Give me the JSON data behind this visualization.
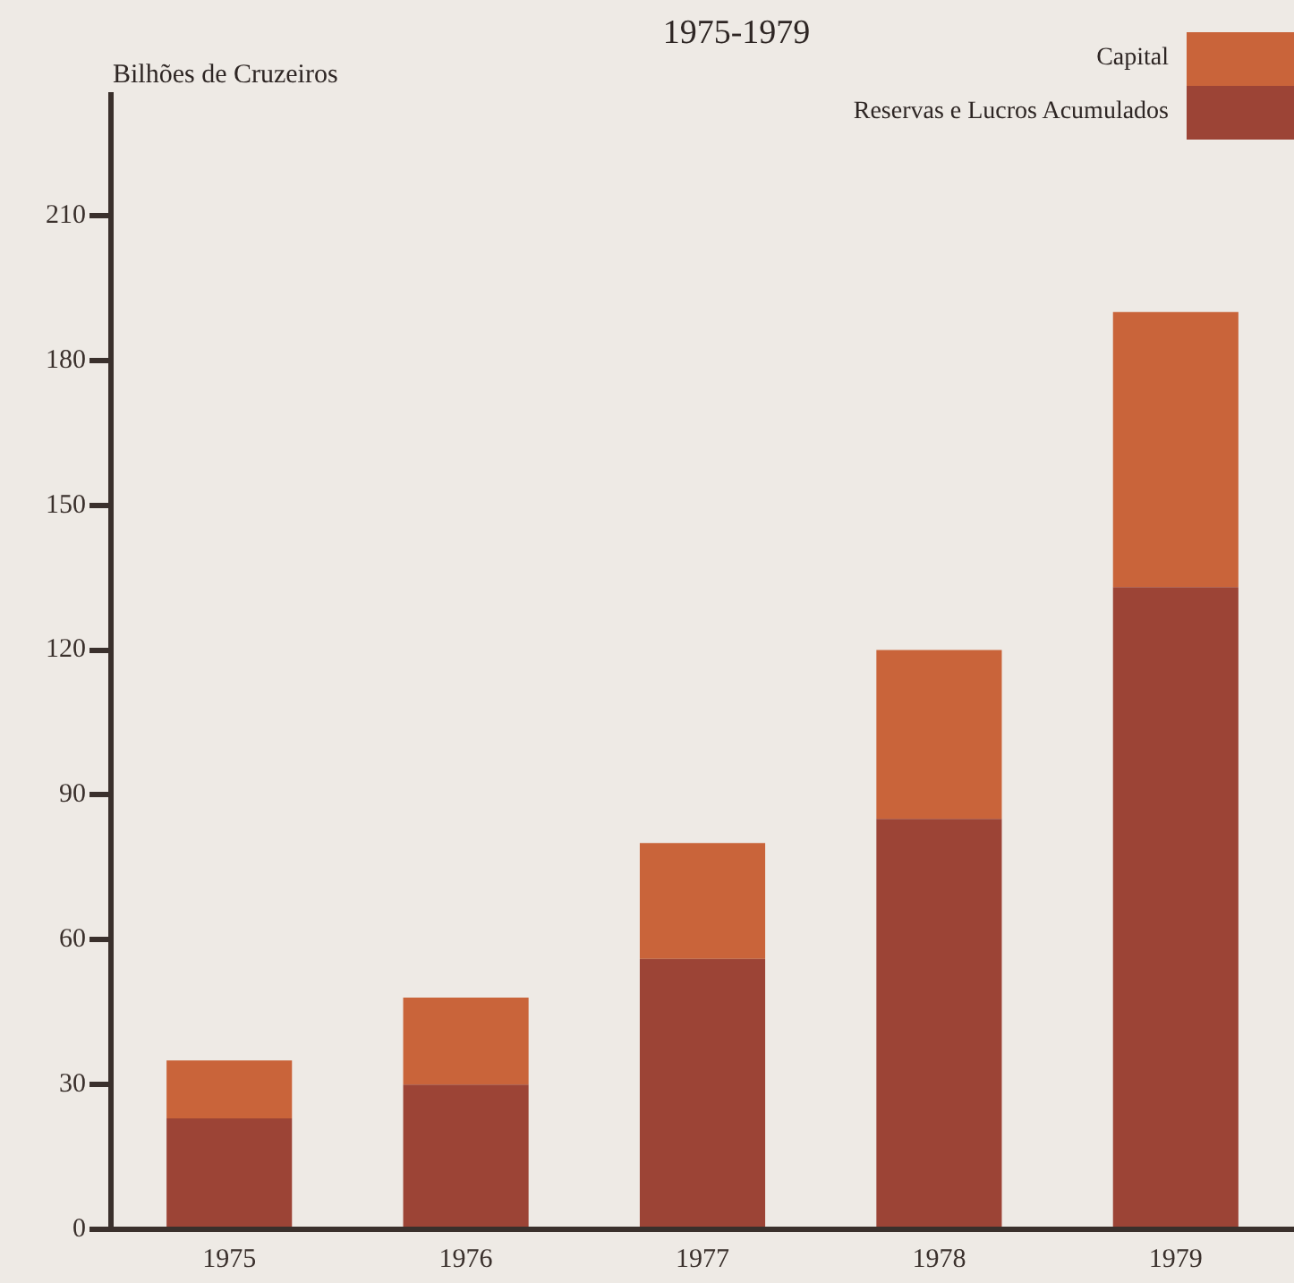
{
  "chart_data": {
    "type": "bar",
    "title": "1975-1979",
    "ylabel": "Bilhões de Cruzeiros",
    "categories": [
      "1975",
      "1976",
      "1977",
      "1978",
      "1979"
    ],
    "stacked": true,
    "series": [
      {
        "name": "Reservas e Lucros Acumulados",
        "color": "#9c4436",
        "values": [
          23,
          30,
          56,
          85,
          133
        ]
      },
      {
        "name": "Capital",
        "color": "#c9643a",
        "values": [
          12,
          18,
          24,
          35,
          57
        ]
      }
    ],
    "ylim": [
      0,
      235
    ],
    "yticks": [
      0,
      30,
      60,
      90,
      120,
      150,
      180,
      210
    ],
    "grid": false,
    "legend": "top right"
  }
}
